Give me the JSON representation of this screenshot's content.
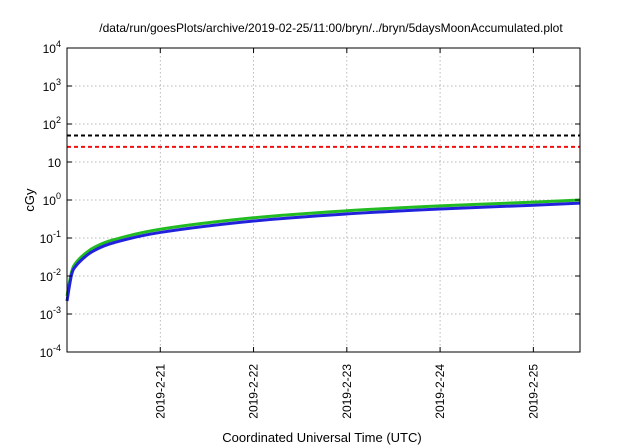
{
  "chart_data": {
    "type": "line",
    "title": "/data/run/goesPlots/archive/2019-02-25/11:00/bryn/../bryn/5daysMoonAccumulated.plot",
    "xlabel": "Coordinated Universal Time (UTC)",
    "ylabel": "cGy",
    "y_scale": "log",
    "ylim": [
      0.0001,
      10000
    ],
    "y_ticks": [
      {
        "value": 0.0001,
        "base": "10",
        "exp": "-4"
      },
      {
        "value": 0.001,
        "base": "10",
        "exp": "-3"
      },
      {
        "value": 0.01,
        "base": "10",
        "exp": "-2"
      },
      {
        "value": 0.1,
        "base": "10",
        "exp": "-1"
      },
      {
        "value": 1,
        "base": "10",
        "exp": "0"
      },
      {
        "value": 10,
        "base": "10",
        "exp": ""
      },
      {
        "value": 100,
        "base": "10",
        "exp": "2"
      },
      {
        "value": 1000,
        "base": "10",
        "exp": "3"
      },
      {
        "value": 10000,
        "base": "10",
        "exp": "4"
      }
    ],
    "x_unit": "days",
    "xlim": [
      "2019-02-20 00:00",
      "2019-02-25 12:00"
    ],
    "x_ticks": [
      "2019-2-21",
      "2019-2-22",
      "2019-2-23",
      "2019-2-24",
      "2019-2-25"
    ],
    "x_tick_dates": [
      "2019-02-21",
      "2019-02-22",
      "2019-02-23",
      "2019-02-24",
      "2019-02-25"
    ],
    "grid": true,
    "thresholds": [
      {
        "value": 50,
        "color": "#000000",
        "style": "dashed"
      },
      {
        "value": 25,
        "color": "#ee1111",
        "style": "dashed"
      }
    ],
    "series": [
      {
        "color": "#22bb22",
        "x": [
          "2019-02-20 00:00",
          "2019-02-20 01:12",
          "2019-02-20 02:24",
          "2019-02-20 04:48",
          "2019-02-20 07:12",
          "2019-02-20 12:00",
          "2019-02-21 00:00",
          "2019-02-22 00:00",
          "2019-02-23 00:00",
          "2019-02-24 00:00",
          "2019-02-25 00:00",
          "2019-02-25 12:00"
        ],
        "y": [
          0.003,
          0.013,
          0.023,
          0.04,
          0.058,
          0.09,
          0.17,
          0.34,
          0.52,
          0.7,
          0.88,
          1.0
        ]
      },
      {
        "color": "#2222dd",
        "x": [
          "2019-02-20 00:00",
          "2019-02-20 01:12",
          "2019-02-20 02:24",
          "2019-02-20 04:48",
          "2019-02-20 07:12",
          "2019-02-20 12:00",
          "2019-02-21 00:00",
          "2019-02-22 00:00",
          "2019-02-23 00:00",
          "2019-02-24 00:00",
          "2019-02-25 00:00",
          "2019-02-25 12:00"
        ],
        "y": [
          0.0022,
          0.011,
          0.019,
          0.033,
          0.048,
          0.075,
          0.14,
          0.28,
          0.43,
          0.58,
          0.73,
          0.83
        ]
      }
    ]
  }
}
